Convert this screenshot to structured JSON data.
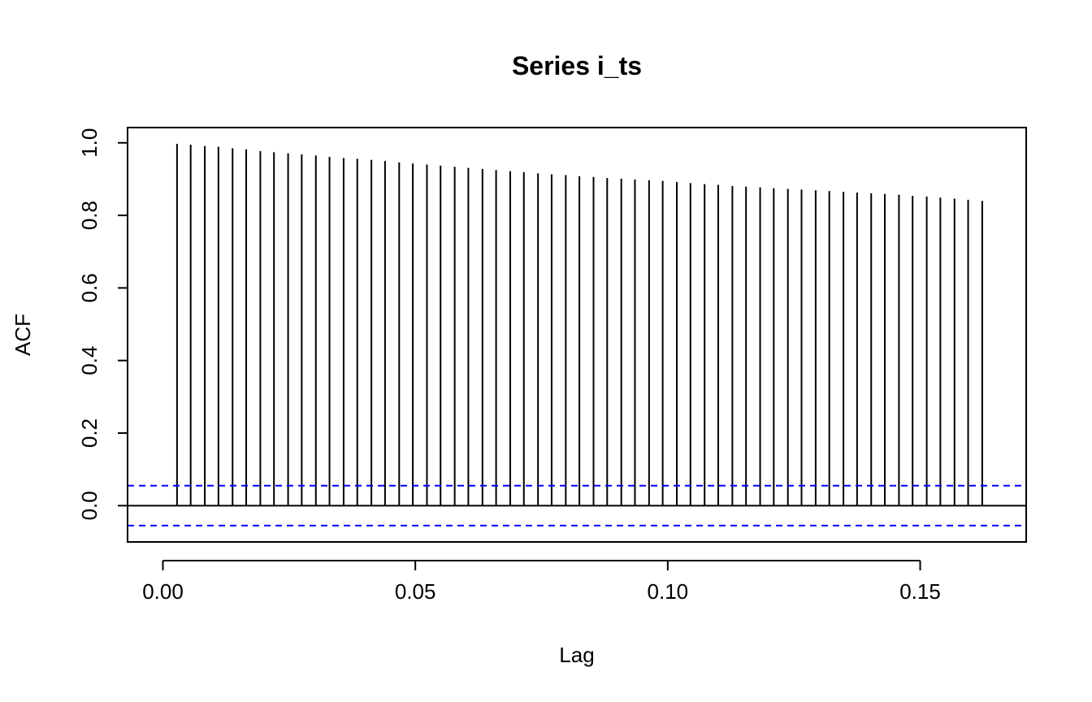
{
  "chart_data": {
    "type": "bar",
    "title": "Series i_ts",
    "xlabel": "Lag",
    "ylabel": "ACF",
    "xlim": [
      -0.007,
      0.171
    ],
    "ylim": [
      -0.1,
      1.042
    ],
    "x_ticks": [
      0.0,
      0.05,
      0.1,
      0.15
    ],
    "x_tick_labels": [
      "0.00",
      "0.05",
      "0.10",
      "0.15"
    ],
    "y_ticks": [
      0.0,
      0.2,
      0.4,
      0.6,
      0.8,
      1.0
    ],
    "y_tick_labels": [
      "0.0",
      "0.2",
      "0.4",
      "0.6",
      "0.8",
      "1.0"
    ],
    "grid": false,
    "legend": "none",
    "confidence_band": 0.055,
    "colors": {
      "bars": "#000000",
      "confidence": "#0000ff",
      "zero_line": "#000000"
    },
    "series": [
      {
        "x": [
          0.0028,
          0.0055,
          0.0083,
          0.011,
          0.0138,
          0.0165,
          0.0193,
          0.022,
          0.0248,
          0.0275,
          0.0303,
          0.033,
          0.0358,
          0.0385,
          0.0413,
          0.044,
          0.0468,
          0.0495,
          0.0523,
          0.055,
          0.0578,
          0.0605,
          0.0633,
          0.066,
          0.0688,
          0.0715,
          0.0743,
          0.077,
          0.0798,
          0.0825,
          0.0853,
          0.088,
          0.0908,
          0.0935,
          0.0963,
          0.099,
          0.1018,
          0.1045,
          0.1073,
          0.11,
          0.1128,
          0.1155,
          0.1183,
          0.121,
          0.1238,
          0.1265,
          0.1293,
          0.132,
          0.1348,
          0.1375,
          0.1403,
          0.143,
          0.1458,
          0.1485,
          0.1513,
          0.154,
          0.1568,
          0.1595,
          0.1623
        ],
        "values": [
          0.997,
          0.995,
          0.991,
          0.989,
          0.985,
          0.982,
          0.977,
          0.974,
          0.971,
          0.968,
          0.965,
          0.961,
          0.958,
          0.956,
          0.953,
          0.95,
          0.946,
          0.943,
          0.94,
          0.937,
          0.934,
          0.931,
          0.928,
          0.925,
          0.922,
          0.919,
          0.916,
          0.913,
          0.911,
          0.908,
          0.906,
          0.903,
          0.901,
          0.899,
          0.897,
          0.895,
          0.892,
          0.889,
          0.886,
          0.884,
          0.881,
          0.879,
          0.877,
          0.875,
          0.873,
          0.871,
          0.869,
          0.867,
          0.865,
          0.863,
          0.861,
          0.859,
          0.857,
          0.854,
          0.852,
          0.849,
          0.846,
          0.843,
          0.84
        ]
      }
    ]
  }
}
